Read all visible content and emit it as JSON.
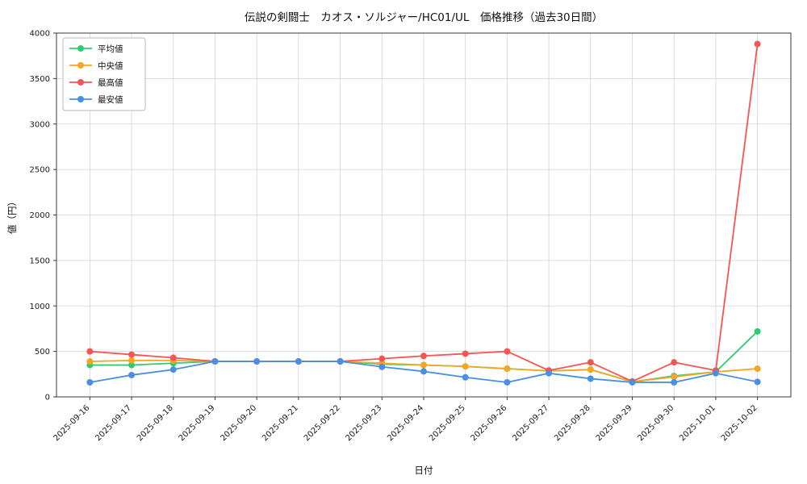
{
  "chart_data": {
    "type": "line",
    "title": "伝説の剣闘士　カオス・ソルジャー/HC01/UL　価格推移（過去30日間）",
    "xlabel": "日付",
    "ylabel": "値（円）",
    "ylim": [
      0,
      4000
    ],
    "yticks": [
      0,
      500,
      1000,
      1500,
      2000,
      2500,
      3000,
      3500,
      4000
    ],
    "grid": true,
    "legend_position": "upper left",
    "categories": [
      "2025-09-16",
      "2025-09-17",
      "2025-09-18",
      "2025-09-19",
      "2025-09-20",
      "2025-09-21",
      "2025-09-22",
      "2025-09-23",
      "2025-09-24",
      "2025-09-25",
      "2025-09-26",
      "2025-09-27",
      "2025-09-28",
      "2025-09-29",
      "2025-09-30",
      "2025-10-01",
      "2025-10-02"
    ],
    "series": [
      {
        "name": "平均値",
        "color": "#2ecc71",
        "values": [
          350,
          350,
          370,
          390,
          390,
          390,
          390,
          360,
          350,
          335,
          310,
          285,
          300,
          165,
          230,
          275,
          720
        ]
      },
      {
        "name": "中央値",
        "color": "#f5a623",
        "values": [
          390,
          400,
          400,
          390,
          390,
          390,
          390,
          370,
          350,
          335,
          310,
          285,
          300,
          165,
          220,
          275,
          310
        ]
      },
      {
        "name": "最高値",
        "color": "#f75454",
        "values": [
          500,
          465,
          430,
          390,
          390,
          390,
          390,
          420,
          450,
          475,
          500,
          290,
          380,
          170,
          380,
          290,
          3880
        ]
      },
      {
        "name": "最安値",
        "color": "#4a90e2",
        "values": [
          160,
          240,
          300,
          390,
          390,
          390,
          390,
          330,
          280,
          215,
          160,
          260,
          200,
          160,
          160,
          260,
          165
        ]
      }
    ]
  }
}
